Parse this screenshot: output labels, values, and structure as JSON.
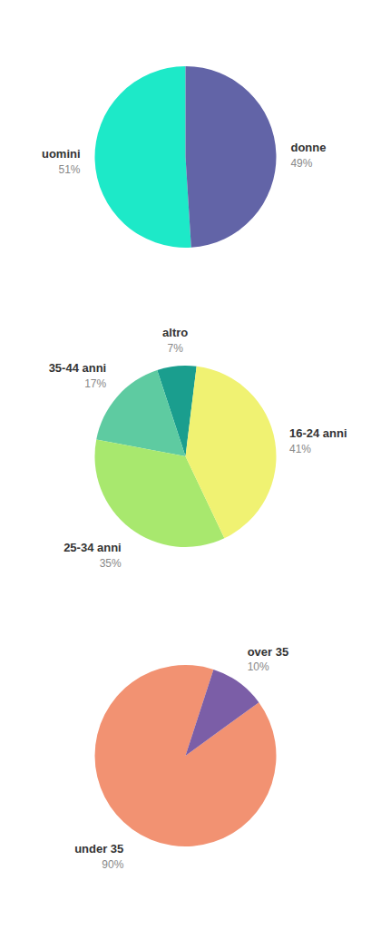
{
  "chart_data": [
    {
      "type": "pie",
      "categories": [
        "uomini",
        "donne"
      ],
      "values": [
        51,
        49
      ],
      "value_labels": [
        "51%",
        "49%"
      ],
      "colors": [
        "#1de9c8",
        "#6264a7"
      ],
      "data_labels": true
    },
    {
      "type": "pie",
      "categories": [
        "altro",
        "35-44 anni",
        "25-34 anni",
        "16-24 anni"
      ],
      "values": [
        7,
        17,
        35,
        41
      ],
      "value_labels": [
        "7%",
        "17%",
        "35%",
        "41%"
      ],
      "colors": [
        "#1a9e8e",
        "#5ecba1",
        "#a8e86e",
        "#f0f272"
      ],
      "data_labels": true
    },
    {
      "type": "pie",
      "categories": [
        "under 35",
        "over 35"
      ],
      "values": [
        90,
        10
      ],
      "value_labels": [
        "90%",
        "10%"
      ],
      "colors": [
        "#f29272",
        "#7b5ea7"
      ],
      "data_labels": true
    }
  ]
}
